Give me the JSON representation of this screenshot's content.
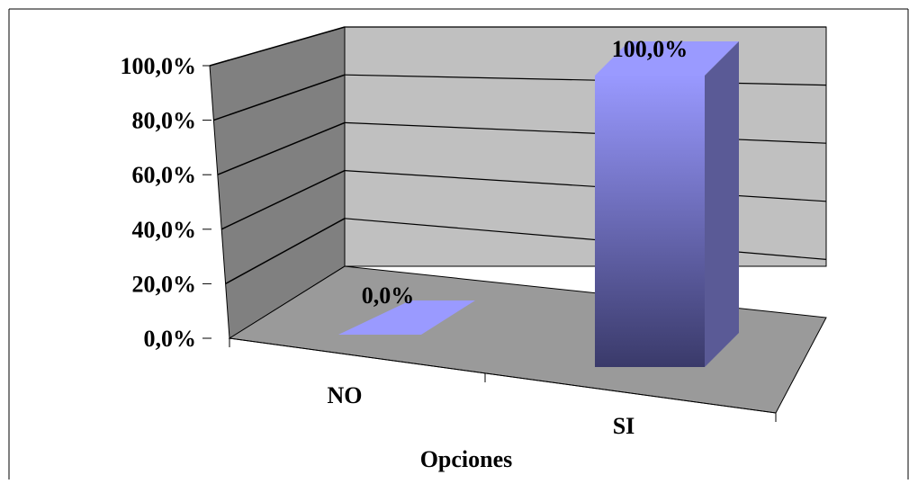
{
  "chart_data": {
    "type": "bar",
    "categories": [
      "NO",
      "SI"
    ],
    "values": [
      0.0,
      100.0
    ],
    "value_labels": [
      "0,0%",
      "100,0%"
    ],
    "xlabel": "Opciones",
    "ylabel": "",
    "ylim": [
      0,
      100
    ],
    "y_ticks": [
      0,
      20,
      40,
      60,
      80,
      100
    ],
    "y_tick_labels": [
      "0,0%",
      "20,0%",
      "40,0%",
      "60,0%",
      "80,0%",
      "100,0%"
    ],
    "grid": true,
    "legend": false,
    "three_d": true,
    "colors": {
      "wall": "#c0c0c0",
      "side_wall": "#808080",
      "floor": "#9a9a9a",
      "bar_top": "#9a9aff",
      "bar_front_top": "#9999ff",
      "bar_front_bottom": "#3a3a6a",
      "bar_side": "#5a5a96"
    }
  }
}
